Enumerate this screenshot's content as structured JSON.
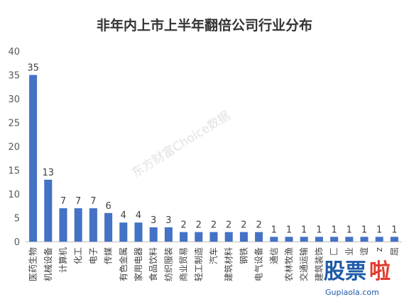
{
  "chart_data": {
    "type": "bar",
    "title": "非年内上市上半年翻倍公司行业分布",
    "categories": [
      "医药生物",
      "机械设备",
      "计算机",
      "化工",
      "电子",
      "传媒",
      "有色金属",
      "家用电器",
      "食品饮料",
      "纺织服装",
      "商业贸易",
      "轻工制造",
      "汽车",
      "建筑材料",
      "钢铁",
      "电气设备",
      "通信",
      "农林牧渔",
      "交通运输",
      "建筑装饰",
      "匚",
      "业",
      "谊",
      "z",
      "屈"
    ],
    "values": [
      35,
      13,
      7,
      7,
      7,
      6,
      4,
      4,
      3,
      3,
      2,
      2,
      2,
      2,
      2,
      2,
      1,
      1,
      1,
      1,
      1,
      1,
      1,
      1,
      1
    ],
    "ylim": [
      0,
      40
    ],
    "yticks": [
      0,
      5,
      10,
      15,
      20,
      25,
      30,
      35,
      40
    ],
    "grid": false,
    "bar_color": "#4472c4"
  },
  "watermark": "东方财富Choice数据",
  "logo": {
    "text_a": "股票",
    "text_b": "啦",
    "url": "Gupiaola.com",
    "color_a": "#1e5aa8",
    "color_b": "#e23b2e"
  }
}
